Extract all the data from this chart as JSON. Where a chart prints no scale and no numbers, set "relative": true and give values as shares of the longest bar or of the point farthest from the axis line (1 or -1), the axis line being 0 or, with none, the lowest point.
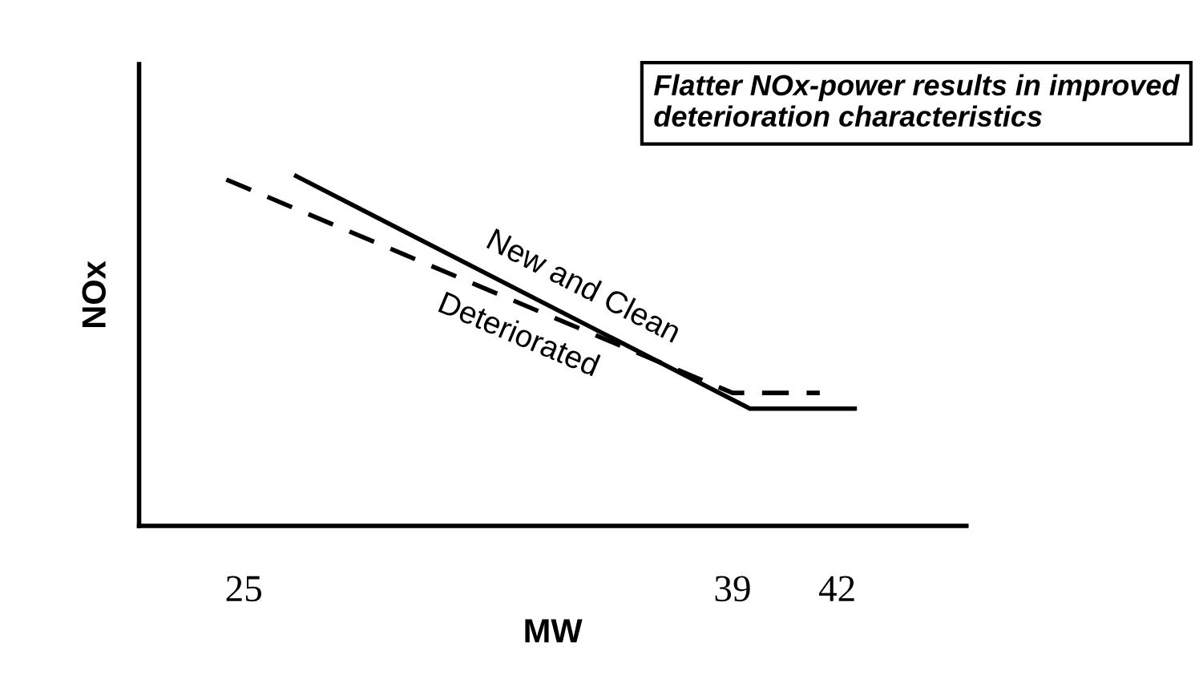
{
  "chart_data": {
    "type": "line",
    "relative": true,
    "xlabel": "MW",
    "ylabel": "NOx",
    "xlim": [
      22,
      45.7
    ],
    "xticks": [
      25,
      39,
      42
    ],
    "grid": false,
    "legend": false,
    "marker": "none",
    "series": [
      {
        "name": "New and Clean",
        "color": "#000000",
        "line_style": "solid",
        "x": [
          26.5,
          39.5,
          42.5
        ],
        "values": [
          1,
          0.335,
          0.335
        ]
      },
      {
        "name": "Deteriorated",
        "color": "#000000",
        "line_style": "dashed",
        "x": [
          24.5,
          39,
          41.5
        ],
        "values": [
          0.99,
          0.38,
          0.38
        ]
      }
    ],
    "annotations": [
      "Flatter NOx-power results in improved deterioration characteristics"
    ]
  }
}
